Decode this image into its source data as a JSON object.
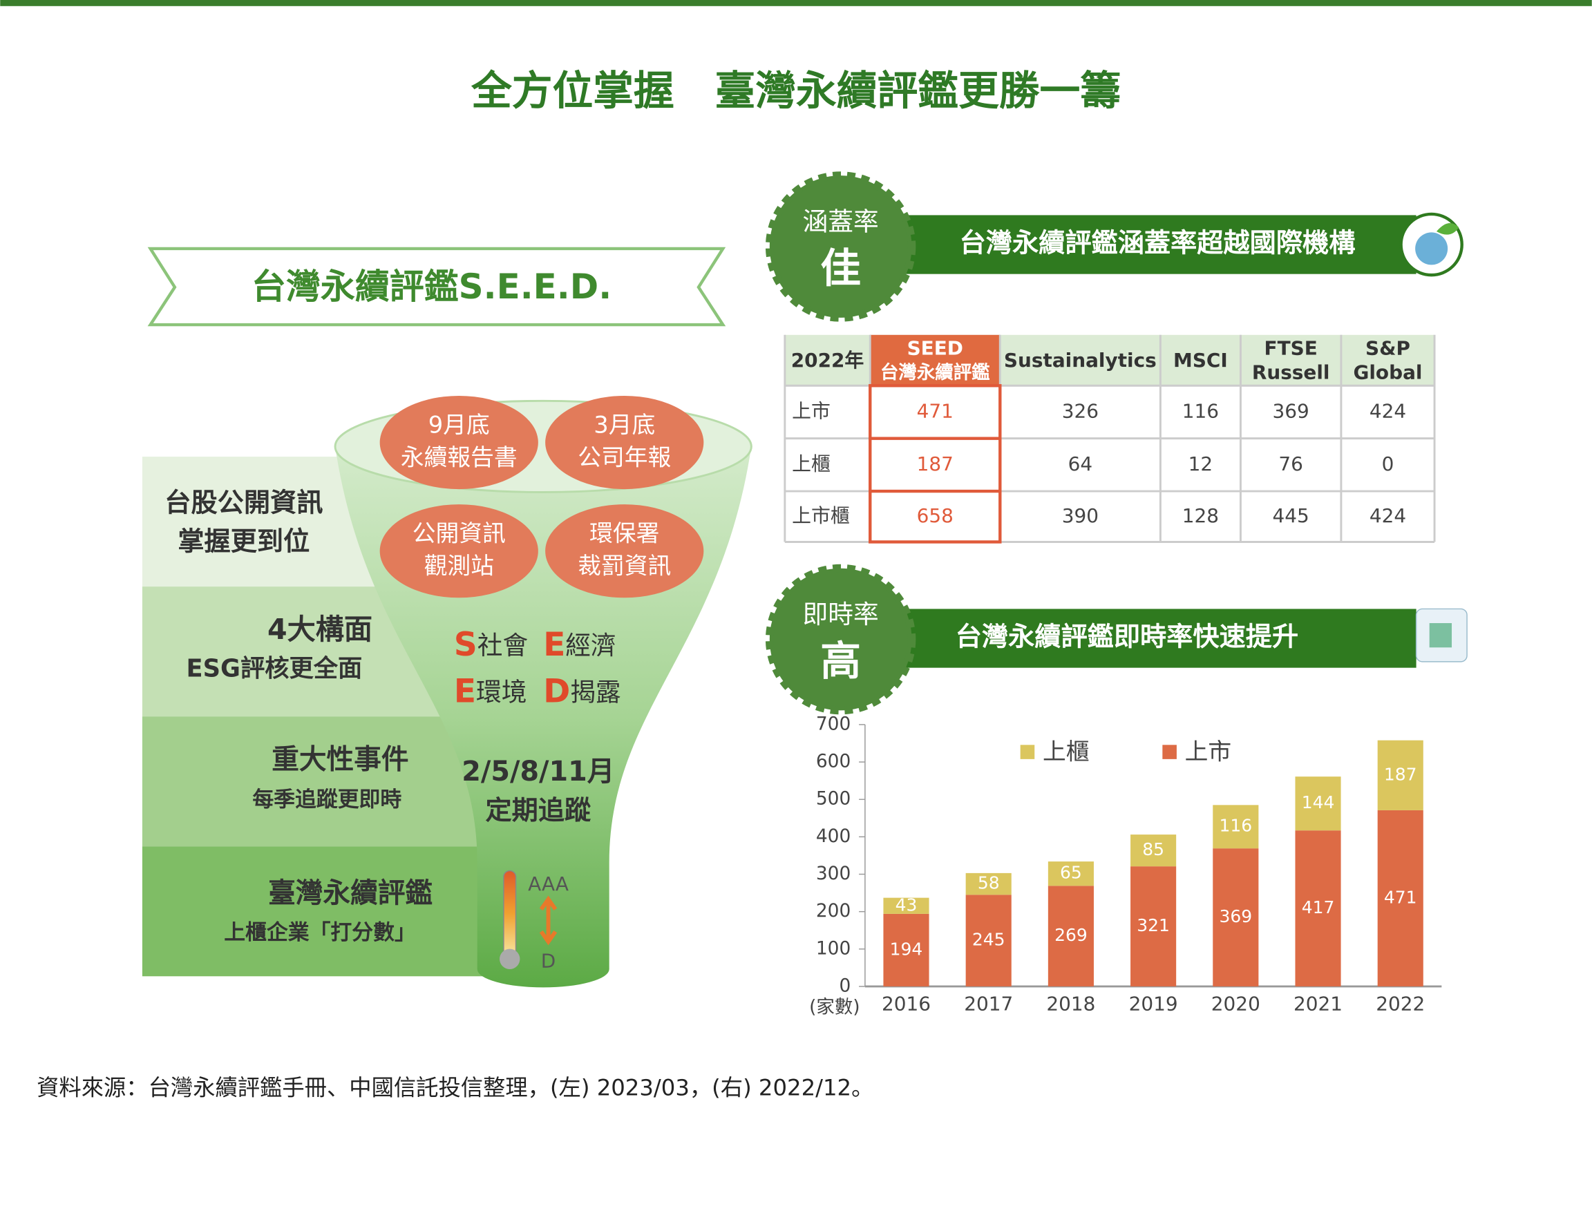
{
  "title": "全方位掌握　臺灣永續評鑑更勝一籌",
  "seed": {
    "title": "台灣永續評鑑S.E.E.D.",
    "rows": [
      [
        "台股公開資訊",
        "掌握更到位"
      ],
      [
        "4大構面",
        "ESG評核更全面"
      ],
      [
        "重大性事件",
        "每季追蹤更即時"
      ],
      [
        "臺灣永續評鑑",
        "上櫃企業「打分數」"
      ]
    ],
    "bubbles": [
      [
        "9月底",
        "永續報告書"
      ],
      [
        "3月底",
        "公司年報"
      ],
      [
        "公開資訊",
        "觀測站"
      ],
      [
        "環保署",
        "裁罰資訊"
      ]
    ],
    "letters": [
      {
        "letter": "S",
        "word": "社會"
      },
      {
        "letter": "E",
        "word": "經濟"
      },
      {
        "letter": "E",
        "word": "環境"
      },
      {
        "letter": "D",
        "word": "揭露"
      }
    ],
    "schedule": [
      "2/5/8/11月",
      "定期追蹤"
    ],
    "scale": [
      "AAA",
      "D"
    ]
  },
  "coverage": {
    "badge": [
      "涵蓋率",
      "佳"
    ],
    "banner": "台灣永續評鑑涵蓋率超越國際機構"
  },
  "table": {
    "header": [
      "2022年",
      [
        "SEED",
        "台灣永續評鑑"
      ],
      "Sustainalytics",
      "MSCI",
      [
        "FTSE",
        "Russell"
      ],
      [
        "S&P",
        "Global"
      ]
    ],
    "rows": [
      [
        "上市",
        471,
        326,
        116,
        369,
        424
      ],
      [
        "上櫃",
        187,
        64,
        12,
        76,
        0
      ],
      [
        "上市櫃",
        658,
        390,
        128,
        445,
        424
      ]
    ]
  },
  "timeliness": {
    "badge": [
      "即時率",
      "高"
    ],
    "banner": "台灣永續評鑑即時率快速提升"
  },
  "chart_data": {
    "type": "stacked_bar",
    "categories": [
      "2016",
      "2017",
      "2018",
      "2019",
      "2020",
      "2021",
      "2022"
    ],
    "series": [
      {
        "name": "上市",
        "color": "#dd6b45",
        "values": [
          194,
          245,
          269,
          321,
          369,
          417,
          471
        ]
      },
      {
        "name": "上櫃",
        "color": "#dbc65e",
        "values": [
          43,
          58,
          65,
          85,
          116,
          144,
          187
        ]
      }
    ],
    "ylim": [
      0,
      700
    ],
    "yticks": [
      0,
      100,
      200,
      300,
      400,
      500,
      600,
      700
    ],
    "y_unit": "(家數)"
  },
  "source": "資料來源：台灣永續評鑑手冊、中國信託投信整理，(左) 2023/03，(右) 2022/12。"
}
